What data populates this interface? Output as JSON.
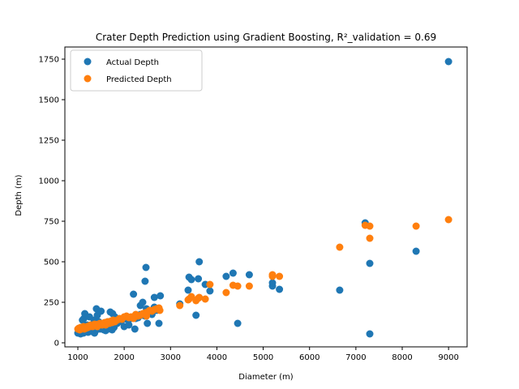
{
  "chart_data": {
    "type": "scatter",
    "title": "Crater Depth Prediction using Gradient Boosting, R²_validation = 0.69",
    "xlabel": "Diameter (m)",
    "ylabel": "Depth (m)",
    "xlim": [
      720,
      9400
    ],
    "ylim": [
      -25,
      1825
    ],
    "xticks": [
      1000,
      2000,
      3000,
      4000,
      5000,
      6000,
      7000,
      8000,
      9000
    ],
    "yticks": [
      0,
      250,
      500,
      750,
      1000,
      1250,
      1500,
      1750
    ],
    "legend_position": "upper-left",
    "series": [
      {
        "name": "Actual Depth",
        "color": "#1f77b4",
        "x": [
          1000,
          1020,
          1040,
          1060,
          1080,
          1100,
          1120,
          1140,
          1160,
          1180,
          1200,
          1220,
          1240,
          1260,
          1280,
          1300,
          1320,
          1340,
          1360,
          1380,
          1400,
          1420,
          1440,
          1460,
          1480,
          1500,
          1520,
          1540,
          1560,
          1580,
          1600,
          1620,
          1640,
          1660,
          1680,
          1700,
          1720,
          1740,
          1760,
          1780,
          1800,
          1850,
          1900,
          1950,
          2000,
          2050,
          2100,
          2150,
          2200,
          2250,
          2300,
          2350,
          2400,
          2450,
          2500,
          2550,
          2600,
          2650,
          2700,
          2750,
          1150,
          1130,
          1400,
          1500,
          1700,
          1750,
          1100,
          1250,
          1350,
          1420,
          1450,
          1600,
          1650,
          1800,
          1300,
          1200,
          2200,
          2230,
          2350,
          2400,
          2450,
          2470,
          2480,
          2500,
          2550,
          2650,
          2750,
          2780,
          3200,
          3380,
          3400,
          3450,
          3550,
          3600,
          3620,
          3750,
          3850,
          4200,
          4350,
          4450,
          4700,
          5200,
          5200,
          5350,
          6650,
          7200,
          7300,
          7300,
          8300,
          9000
        ],
        "y": [
          60,
          70,
          80,
          55,
          90,
          75,
          60,
          95,
          70,
          85,
          100,
          65,
          80,
          90,
          75,
          70,
          110,
          85,
          60,
          95,
          80,
          120,
          90,
          100,
          85,
          95,
          105,
          120,
          80,
          90,
          75,
          110,
          95,
          85,
          125,
          100,
          115,
          80,
          130,
          95,
          110,
          120,
          130,
          140,
          100,
          145,
          110,
          150,
          160,
          150,
          155,
          175,
          170,
          165,
          200,
          190,
          175,
          220,
          200,
          210,
          180,
          150,
          210,
          195,
          190,
          180,
          140,
          160,
          140,
          170,
          130,
          125,
          130,
          160,
          100,
          110,
          300,
          85,
          230,
          250,
          380,
          465,
          210,
          120,
          195,
          280,
          120,
          290,
          240,
          325,
          405,
          390,
          170,
          395,
          500,
          360,
          320,
          410,
          430,
          120,
          420,
          350,
          370,
          330,
          325,
          740,
          490,
          55,
          565,
          1735
        ]
      },
      {
        "name": "Predicted Depth",
        "color": "#ff7f0e",
        "x": [
          1000,
          1020,
          1040,
          1060,
          1080,
          1100,
          1120,
          1140,
          1160,
          1180,
          1200,
          1220,
          1240,
          1260,
          1280,
          1300,
          1320,
          1340,
          1360,
          1380,
          1400,
          1420,
          1440,
          1460,
          1480,
          1500,
          1520,
          1540,
          1560,
          1580,
          1600,
          1620,
          1640,
          1660,
          1680,
          1700,
          1720,
          1740,
          1760,
          1780,
          1800,
          1850,
          1900,
          1950,
          2000,
          2050,
          2100,
          2150,
          2200,
          2250,
          2300,
          2350,
          2400,
          2450,
          2500,
          2550,
          2600,
          2650,
          2700,
          2750,
          2770,
          2480,
          3200,
          3380,
          3400,
          3450,
          3550,
          3600,
          3620,
          3750,
          3850,
          4200,
          4350,
          4450,
          4700,
          5200,
          5200,
          5350,
          6650,
          7200,
          7300,
          7300,
          8300,
          9000
        ],
        "y": [
          85,
          90,
          80,
          95,
          85,
          90,
          100,
          85,
          95,
          90,
          100,
          95,
          105,
          100,
          110,
          105,
          100,
          110,
          115,
          105,
          110,
          100,
          115,
          110,
          120,
          115,
          110,
          120,
          115,
          125,
          110,
          120,
          130,
          125,
          120,
          130,
          135,
          125,
          140,
          135,
          130,
          140,
          150,
          145,
          160,
          165,
          155,
          160,
          150,
          175,
          165,
          170,
          180,
          185,
          190,
          200,
          195,
          205,
          210,
          215,
          200,
          165,
          230,
          265,
          270,
          285,
          260,
          275,
          280,
          270,
          360,
          310,
          355,
          350,
          350,
          420,
          410,
          410,
          590,
          725,
          720,
          645,
          720,
          760
        ]
      }
    ]
  }
}
